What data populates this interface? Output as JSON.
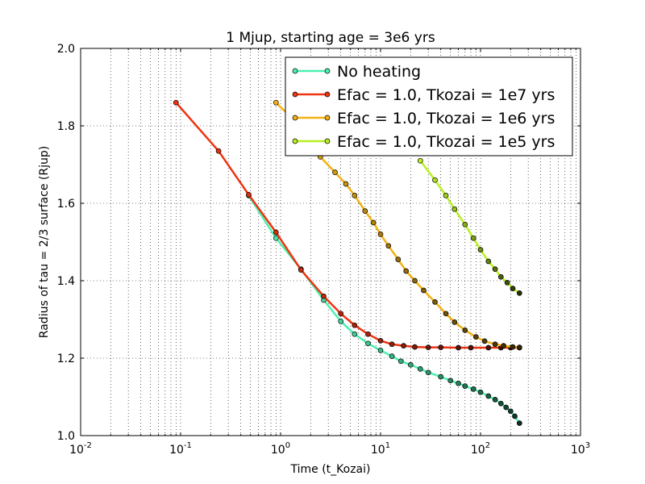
{
  "chart_data": {
    "type": "line",
    "title": "1 Mjup, starting age = 3e6 yrs",
    "xlabel": "Time (t_Kozai)",
    "ylabel": "Radius of tau = 2/3 surface (Rjup)",
    "xscale": "log",
    "xlim": [
      0.01,
      1000
    ],
    "ylim": [
      1.0,
      2.0
    ],
    "xticks": [
      {
        "value": 0.01,
        "base": "10",
        "exp": "-2"
      },
      {
        "value": 0.1,
        "base": "10",
        "exp": "-1"
      },
      {
        "value": 1,
        "base": "10",
        "exp": "0"
      },
      {
        "value": 10,
        "base": "10",
        "exp": "1"
      },
      {
        "value": 100,
        "base": "10",
        "exp": "2"
      },
      {
        "value": 1000,
        "base": "10",
        "exp": "3"
      }
    ],
    "yticks": [
      {
        "value": 1.0,
        "label": "1.0"
      },
      {
        "value": 1.2,
        "label": "1.2"
      },
      {
        "value": 1.4,
        "label": "1.4"
      },
      {
        "value": 1.6,
        "label": "1.6"
      },
      {
        "value": 1.8,
        "label": "1.8"
      },
      {
        "value": 2.0,
        "label": "2.0"
      }
    ],
    "grid": true,
    "legend_position": "upper-right",
    "series": [
      {
        "name": "No heating",
        "color": "#4ef0b0",
        "points": [
          [
            0.48,
            1.62
          ],
          [
            0.9,
            1.51
          ],
          [
            1.6,
            1.43
          ],
          [
            2.7,
            1.35
          ],
          [
            4.0,
            1.295
          ],
          [
            5.5,
            1.262
          ],
          [
            7.5,
            1.238
          ],
          [
            10,
            1.22
          ],
          [
            13,
            1.205
          ],
          [
            16,
            1.192
          ],
          [
            20,
            1.183
          ],
          [
            25,
            1.172
          ],
          [
            30,
            1.163
          ],
          [
            40,
            1.152
          ],
          [
            50,
            1.142
          ],
          [
            60,
            1.135
          ],
          [
            70,
            1.128
          ],
          [
            85,
            1.12
          ],
          [
            100,
            1.112
          ],
          [
            120,
            1.102
          ],
          [
            140,
            1.093
          ],
          [
            160,
            1.083
          ],
          [
            180,
            1.073
          ],
          [
            200,
            1.063
          ],
          [
            220,
            1.05
          ],
          [
            245,
            1.032
          ]
        ]
      },
      {
        "name": "Efac = 1.0, Tkozai = 1e7 yrs",
        "color": "#ee3311",
        "points": [
          [
            0.09,
            1.86
          ],
          [
            0.24,
            1.735
          ],
          [
            0.48,
            1.622
          ],
          [
            0.9,
            1.525
          ],
          [
            1.6,
            1.428
          ],
          [
            2.7,
            1.36
          ],
          [
            4.0,
            1.315
          ],
          [
            5.5,
            1.285
          ],
          [
            7.5,
            1.262
          ],
          [
            10,
            1.245
          ],
          [
            13,
            1.236
          ],
          [
            17,
            1.232
          ],
          [
            22,
            1.229
          ],
          [
            30,
            1.228
          ],
          [
            40,
            1.228
          ],
          [
            60,
            1.227
          ],
          [
            80,
            1.227
          ],
          [
            120,
            1.227
          ],
          [
            160,
            1.227
          ],
          [
            200,
            1.227
          ],
          [
            245,
            1.227
          ]
        ]
      },
      {
        "name": "Efac = 1.0, Tkozai = 1e6 yrs",
        "color": "#f3b212",
        "points": [
          [
            0.9,
            1.86
          ],
          [
            1.3,
            1.82
          ],
          [
            1.8,
            1.76
          ],
          [
            2.5,
            1.72
          ],
          [
            3.5,
            1.68
          ],
          [
            4.5,
            1.65
          ],
          [
            5.5,
            1.62
          ],
          [
            7,
            1.58
          ],
          [
            8.5,
            1.55
          ],
          [
            10,
            1.52
          ],
          [
            12,
            1.49
          ],
          [
            15,
            1.455
          ],
          [
            18,
            1.425
          ],
          [
            22,
            1.4
          ],
          [
            27,
            1.375
          ],
          [
            35,
            1.345
          ],
          [
            45,
            1.315
          ],
          [
            55,
            1.293
          ],
          [
            70,
            1.272
          ],
          [
            90,
            1.255
          ],
          [
            110,
            1.244
          ],
          [
            140,
            1.236
          ],
          [
            170,
            1.232
          ],
          [
            210,
            1.229
          ],
          [
            245,
            1.228
          ]
        ]
      },
      {
        "name": "Efac = 1.0, Tkozai = 1e5 yrs",
        "color": "#b8f020",
        "points": [
          [
            25,
            1.71
          ],
          [
            35,
            1.66
          ],
          [
            45,
            1.62
          ],
          [
            55,
            1.585
          ],
          [
            70,
            1.545
          ],
          [
            85,
            1.51
          ],
          [
            100,
            1.48
          ],
          [
            120,
            1.45
          ],
          [
            140,
            1.43
          ],
          [
            160,
            1.41
          ],
          [
            185,
            1.395
          ],
          [
            210,
            1.38
          ],
          [
            245,
            1.368
          ]
        ]
      }
    ]
  }
}
